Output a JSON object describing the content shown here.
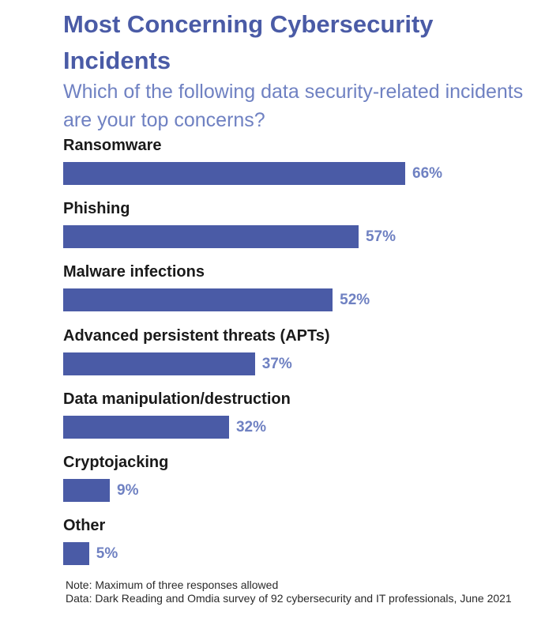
{
  "title": "Most Concerning Cybersecurity Incidents",
  "subtitle": "Which of the following data security-related incidents are your top concerns?",
  "colors": {
    "title": "#4a5ba6",
    "subtitle": "#6f81c2",
    "bar": "#4a5ba6",
    "value_label": "#6f81c2",
    "category_label": "#1a1a1a"
  },
  "chart_data": {
    "type": "bar",
    "orientation": "horizontal",
    "title": "Most Concerning Cybersecurity Incidents",
    "subtitle": "Which of the following data security-related incidents are your top concerns?",
    "xlabel": "",
    "ylabel": "",
    "xlim": [
      0,
      100
    ],
    "unit": "%",
    "grid": false,
    "categories": [
      "Ransomware",
      "Phishing",
      "Malware infections",
      "Advanced persistent threats (APTs)",
      "Data manipulation/destruction",
      "Cryptojacking",
      "Other"
    ],
    "values": [
      66,
      57,
      52,
      37,
      32,
      9,
      5
    ],
    "value_labels": [
      "66%",
      "57%",
      "52%",
      "37%",
      "32%",
      "9%",
      "5%"
    ]
  },
  "notes": {
    "note_prefix": "Note: ",
    "note_text": "Maximum of three responses allowed",
    "data_prefix": "Data: ",
    "data_text": "Dark Reading and Omdia survey of 92 cybersecurity and IT professionals, June 2021"
  }
}
